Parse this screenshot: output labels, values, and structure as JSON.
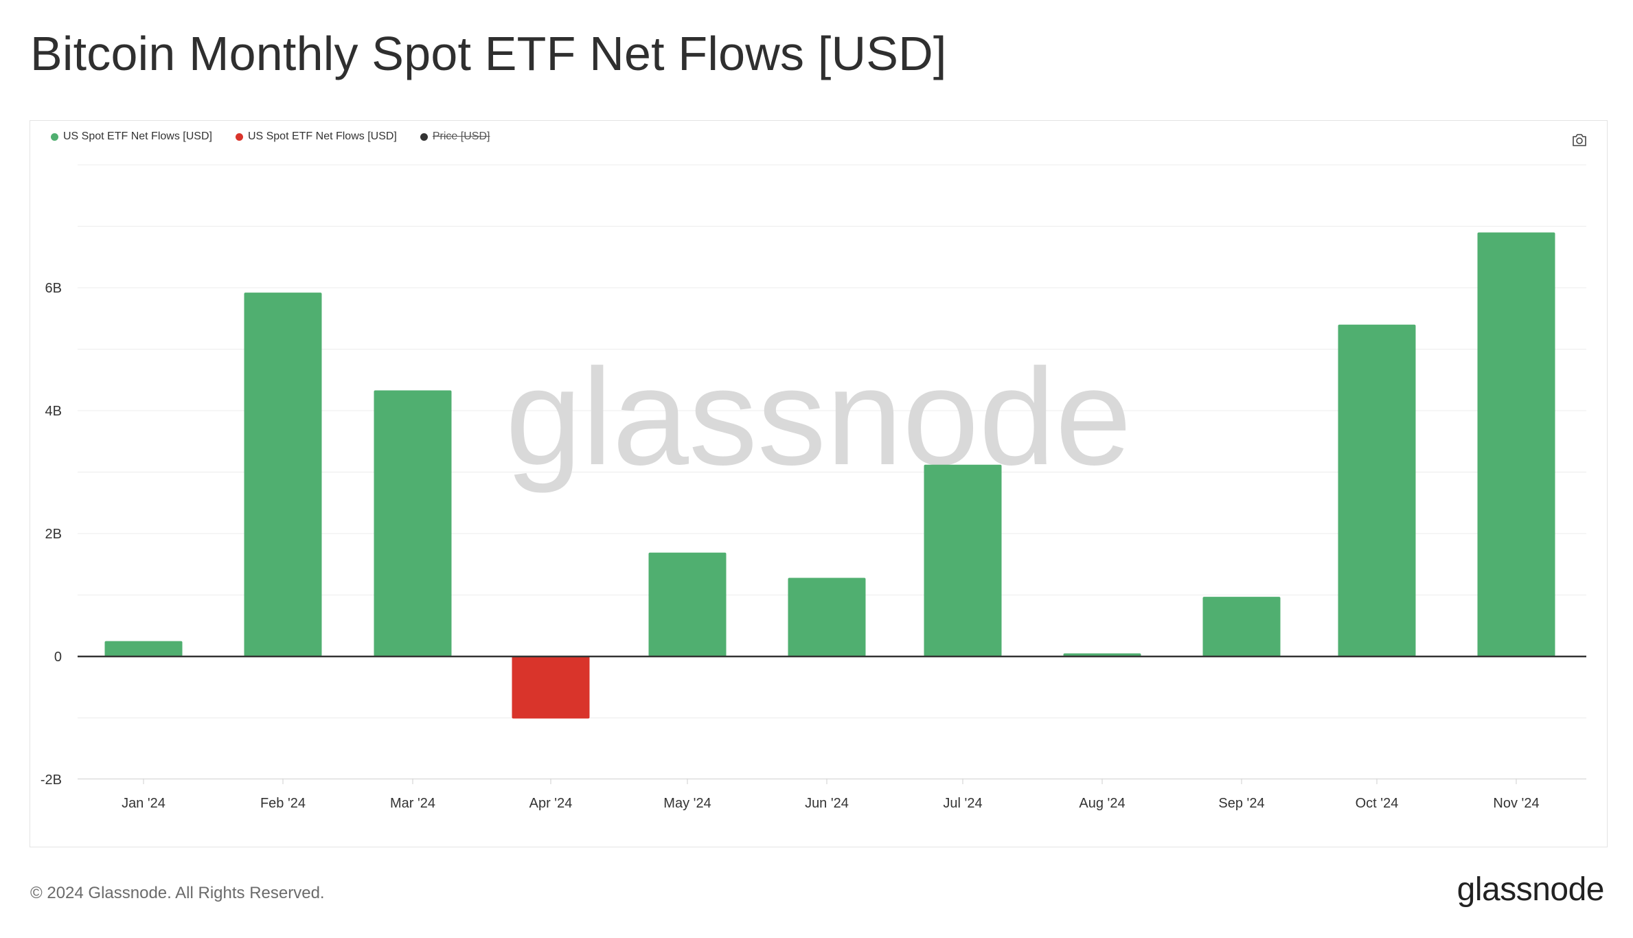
{
  "title": "Bitcoin Monthly Spot ETF Net Flows [USD]",
  "legend": [
    {
      "label": "US Spot ETF Net Flows [USD]",
      "color": "#50af70",
      "struck": false
    },
    {
      "label": "US Spot ETF Net Flows [USD]",
      "color": "#d9342b",
      "struck": false
    },
    {
      "label": "Price [USD]",
      "color": "#333333",
      "struck": true
    }
  ],
  "watermark": "glassnode",
  "footer": {
    "copyright": "© 2024 Glassnode. All Rights Reserved.",
    "logo": "glassnode"
  },
  "icons": {
    "camera": "camera-icon"
  },
  "colors": {
    "positive": "#50af70",
    "negative": "#d9342b",
    "grid": "#ececec",
    "zero_line": "#333333"
  },
  "chart_data": {
    "type": "bar",
    "categories": [
      "Jan '24",
      "Feb '24",
      "Mar '24",
      "Apr '24",
      "May '24",
      "Jun '24",
      "Jul '24",
      "Aug '24",
      "Sep '24",
      "Oct '24",
      "Nov '24"
    ],
    "values": [
      0.25,
      5.92,
      4.33,
      -1.01,
      1.69,
      1.28,
      3.12,
      0.05,
      0.97,
      5.4,
      6.9
    ],
    "value_unit": "USD billions",
    "yticks": [
      -2,
      0,
      2,
      4,
      6
    ],
    "ytick_labels": [
      "-2B",
      "0",
      "2B",
      "4B",
      "6B"
    ],
    "ylim": [
      -2,
      8
    ],
    "grid": true,
    "legend_position": "top-left"
  }
}
